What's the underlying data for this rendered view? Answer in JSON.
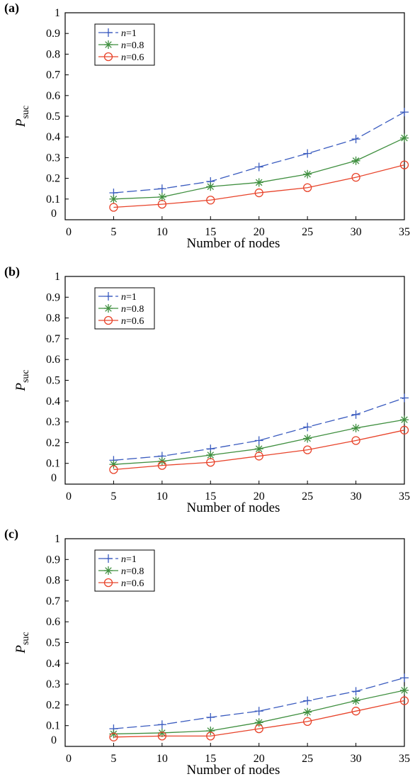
{
  "chart_data": [
    {
      "panel": "(a)",
      "type": "line",
      "x": [
        5,
        10,
        15,
        20,
        25,
        30,
        35
      ],
      "xlim": [
        0,
        35
      ],
      "ylim": [
        0,
        1
      ],
      "xticks": [
        "0",
        "5",
        "10",
        "15",
        "20",
        "25",
        "30",
        "35"
      ],
      "yticks": [
        "0",
        "0.1",
        "0.2",
        "0.3",
        "0.4",
        "0.5",
        "0.6",
        "0.7",
        "0.8",
        "0.9",
        "1"
      ],
      "xlabel": "Number of nodes",
      "ylabel_main": "P",
      "ylabel_sub": "suc",
      "legend_position": "top-left",
      "grid": false,
      "series": [
        {
          "name_italic": "n",
          "name_rest": "=1",
          "color": "#3a5bbf",
          "marker": "plus",
          "dash": "dashed",
          "values": [
            0.13,
            0.15,
            0.185,
            0.255,
            0.32,
            0.39,
            0.52
          ]
        },
        {
          "name_italic": "n",
          "name_rest": "=0.8",
          "color": "#3f8f3f",
          "marker": "star",
          "dash": "solid",
          "values": [
            0.1,
            0.11,
            0.16,
            0.18,
            0.22,
            0.285,
            0.395
          ]
        },
        {
          "name_italic": "n",
          "name_rest": "=0.6",
          "color": "#e8432a",
          "marker": "circle",
          "dash": "solid",
          "values": [
            0.06,
            0.075,
            0.095,
            0.13,
            0.155,
            0.205,
            0.265
          ]
        }
      ]
    },
    {
      "panel": "(b)",
      "type": "line",
      "x": [
        5,
        10,
        15,
        20,
        25,
        30,
        35
      ],
      "xlim": [
        0,
        35
      ],
      "ylim": [
        0,
        1
      ],
      "xticks": [
        "0",
        "5",
        "10",
        "15",
        "20",
        "25",
        "30",
        "35"
      ],
      "yticks": [
        "0",
        "0.1",
        "0.2",
        "0.3",
        "0.4",
        "0.5",
        "0.6",
        "0.7",
        "0.8",
        "0.9",
        "1"
      ],
      "xlabel": "Number of nodes",
      "ylabel_main": "P",
      "ylabel_sub": "suc",
      "legend_position": "top-left",
      "grid": false,
      "series": [
        {
          "name_italic": "n",
          "name_rest": "=1",
          "color": "#3a5bbf",
          "marker": "plus",
          "dash": "dashed",
          "values": [
            0.115,
            0.135,
            0.17,
            0.21,
            0.275,
            0.335,
            0.415
          ]
        },
        {
          "name_italic": "n",
          "name_rest": "=0.8",
          "color": "#3f8f3f",
          "marker": "star",
          "dash": "solid",
          "values": [
            0.095,
            0.11,
            0.14,
            0.17,
            0.22,
            0.27,
            0.31
          ]
        },
        {
          "name_italic": "n",
          "name_rest": "=0.6",
          "color": "#e8432a",
          "marker": "circle",
          "dash": "solid",
          "values": [
            0.07,
            0.09,
            0.105,
            0.135,
            0.165,
            0.21,
            0.26
          ]
        }
      ]
    },
    {
      "panel": "(c)",
      "type": "line",
      "x": [
        5,
        10,
        15,
        20,
        25,
        30,
        35
      ],
      "xlim": [
        0,
        35
      ],
      "ylim": [
        0,
        1
      ],
      "xticks": [
        "0",
        "5",
        "10",
        "15",
        "20",
        "25",
        "30",
        "35"
      ],
      "yticks": [
        "0",
        "0.1",
        "0.2",
        "0.3",
        "0.4",
        "0.5",
        "0.6",
        "0.7",
        "0.8",
        "0.9",
        "1"
      ],
      "xlabel": "Number of nodes",
      "ylabel_main": "P",
      "ylabel_sub": "suc",
      "legend_position": "top-left",
      "grid": false,
      "series": [
        {
          "name_italic": "n",
          "name_rest": "=1",
          "color": "#3a5bbf",
          "marker": "plus",
          "dash": "dashed",
          "values": [
            0.085,
            0.105,
            0.14,
            0.17,
            0.22,
            0.265,
            0.33
          ]
        },
        {
          "name_italic": "n",
          "name_rest": "=0.8",
          "color": "#3f8f3f",
          "marker": "star",
          "dash": "solid",
          "values": [
            0.06,
            0.065,
            0.075,
            0.115,
            0.165,
            0.22,
            0.27
          ]
        },
        {
          "name_italic": "n",
          "name_rest": "=0.6",
          "color": "#e8432a",
          "marker": "circle",
          "dash": "solid",
          "values": [
            0.045,
            0.05,
            0.05,
            0.085,
            0.12,
            0.17,
            0.22
          ]
        }
      ]
    }
  ]
}
